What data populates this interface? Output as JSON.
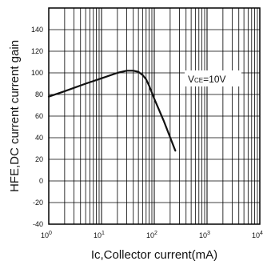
{
  "chart_data": {
    "type": "line",
    "xscale": "log",
    "xlim": [
      1,
      10000
    ],
    "ylim": [
      -40,
      160
    ],
    "grid": true,
    "x_tick_labels": [
      "10",
      "10",
      "10",
      "10",
      "10"
    ],
    "x_tick_exponents": [
      "0",
      "1",
      "2",
      "3",
      "4"
    ],
    "y_ticks": [
      -40,
      -20,
      0,
      20,
      40,
      60,
      80,
      100,
      120,
      140
    ],
    "y_tick_labels": [
      "-40",
      "-20",
      "0",
      "20",
      "40",
      "60",
      "80",
      "100",
      "120",
      "140"
    ],
    "xlabel": "Ic,Collector current(mA)",
    "ylabel": "HFE,DC current current gain",
    "series": [
      {
        "x": [
          1,
          2,
          5,
          10,
          20,
          30,
          40,
          50,
          60,
          70,
          80,
          100,
          150,
          250
        ],
        "y": [
          78,
          83,
          90,
          95,
          100,
          102,
          102,
          101,
          98,
          94,
          88,
          76,
          56,
          28
        ]
      }
    ],
    "annotation": {
      "main": "V",
      "subscript": "CE",
      "value": "=10V"
    },
    "colors": {
      "line": "#111111",
      "grid": "#000000"
    }
  }
}
